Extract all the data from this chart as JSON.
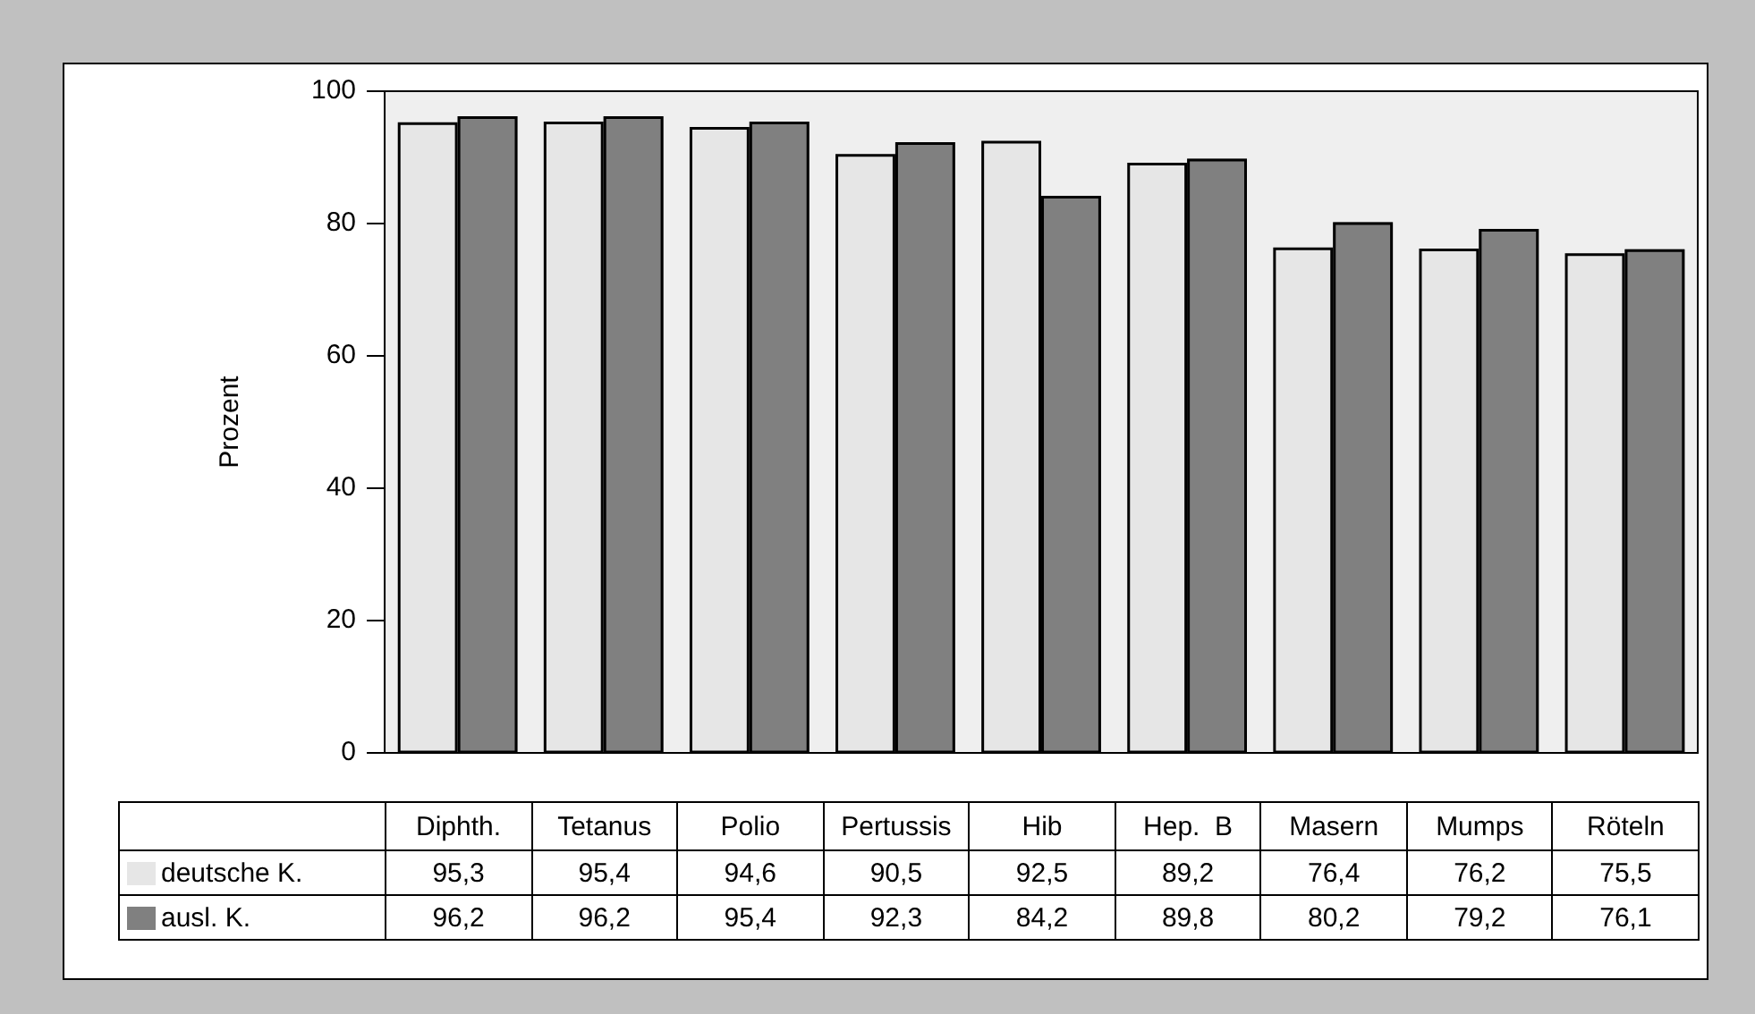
{
  "chart_data": {
    "type": "bar",
    "ylabel": "Prozent",
    "categories": [
      "Diphth.",
      "Tetanus",
      "Polio",
      "Pertussis",
      "Hib",
      "Hep.  B",
      "Masern",
      "Mumps",
      "Röteln"
    ],
    "series": [
      {
        "name": "deutsche K.",
        "color": "#e6e6e6",
        "values": [
          95.3,
          95.4,
          94.6,
          90.5,
          92.5,
          89.2,
          76.4,
          76.2,
          75.5
        ],
        "value_labels": [
          "95,3",
          "95,4",
          "94,6",
          "90,5",
          "92,5",
          "89,2",
          "76,4",
          "76,2",
          "75,5"
        ]
      },
      {
        "name": "ausl. K.",
        "color": "#808080",
        "values": [
          96.2,
          96.2,
          95.4,
          92.3,
          84.2,
          89.8,
          80.2,
          79.2,
          76.1
        ],
        "value_labels": [
          "96,2",
          "96,2",
          "95,4",
          "92,3",
          "84,2",
          "89,8",
          "80,2",
          "79,2",
          "76,1"
        ]
      }
    ],
    "ylim": [
      0,
      100
    ],
    "yticks": [
      0,
      20,
      40,
      60,
      80,
      100
    ],
    "grid": false,
    "legend": "bottom"
  }
}
